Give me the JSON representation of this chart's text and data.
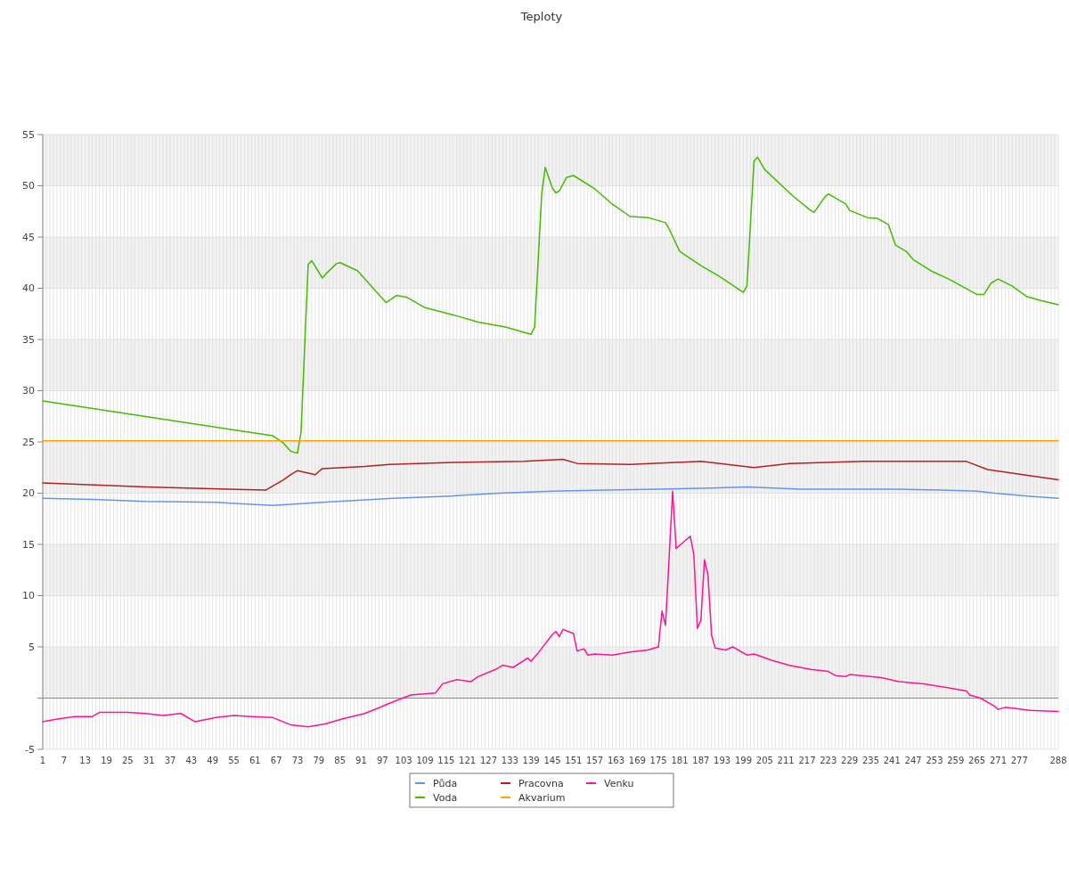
{
  "chart_data": {
    "type": "line",
    "title": "Teploty",
    "xlim": [
      1,
      288
    ],
    "xticks": [
      1,
      {
        "value": 2,
        "label": null
      },
      {
        "value": 3,
        "label": null
      },
      {
        "value": 4,
        "label": null
      },
      {
        "value": 5,
        "label": null
      },
      {
        "value": 6,
        "label": null
      },
      7,
      {
        "value": 8,
        "label": null
      },
      {
        "value": 9,
        "label": null
      },
      {
        "value": 10,
        "label": null
      },
      {
        "value": 11,
        "label": null
      },
      {
        "value": 12,
        "label": null
      },
      13,
      {
        "value": 14,
        "label": null
      },
      {
        "value": 15,
        "label": null
      },
      {
        "value": 16,
        "label": null
      },
      {
        "value": 17,
        "label": null
      },
      {
        "value": 18,
        "label": null
      },
      19,
      {
        "value": 20,
        "label": null
      },
      {
        "value": 21,
        "label": null
      },
      {
        "value": 22,
        "label": null
      },
      {
        "value": 23,
        "label": null
      },
      {
        "value": 24,
        "label": null
      },
      25,
      {
        "value": 26,
        "label": null
      },
      {
        "value": 27,
        "label": null
      },
      {
        "value": 28,
        "label": null
      },
      {
        "value": 29,
        "label": null
      },
      {
        "value": 30,
        "label": null
      },
      31,
      {
        "value": 32,
        "label": null
      },
      {
        "value": 33,
        "label": null
      },
      {
        "value": 34,
        "label": null
      },
      {
        "value": 35,
        "label": null
      },
      {
        "value": 36,
        "label": null
      },
      37,
      {
        "value": 38,
        "label": null
      },
      {
        "value": 39,
        "label": null
      },
      {
        "value": 40,
        "label": null
      },
      {
        "value": 41,
        "label": null
      },
      {
        "value": 42,
        "label": null
      },
      43,
      {
        "value": 44,
        "label": null
      },
      {
        "value": 45,
        "label": null
      },
      {
        "value": 46,
        "label": null
      },
      {
        "value": 47,
        "label": null
      },
      {
        "value": 48,
        "label": null
      },
      49,
      {
        "value": 50,
        "label": null
      },
      {
        "value": 51,
        "label": null
      },
      {
        "value": 52,
        "label": null
      },
      {
        "value": 53,
        "label": null
      },
      {
        "value": 54,
        "label": null
      },
      55,
      {
        "value": 56,
        "label": null
      },
      {
        "value": 57,
        "label": null
      },
      {
        "value": 58,
        "label": null
      },
      {
        "value": 59,
        "label": null
      },
      {
        "value": 60,
        "label": null
      },
      61,
      {
        "value": 62,
        "label": null
      },
      {
        "value": 63,
        "label": null
      },
      {
        "value": 64,
        "label": null
      },
      {
        "value": 65,
        "label": null
      },
      {
        "value": 66,
        "label": null
      },
      67,
      {
        "value": 68,
        "label": null
      },
      {
        "value": 69,
        "label": null
      },
      {
        "value": 70,
        "label": null
      },
      {
        "value": 71,
        "label": null
      },
      {
        "value": 72,
        "label": null
      },
      73,
      {
        "value": 74,
        "label": null
      },
      {
        "value": 75,
        "label": null
      },
      {
        "value": 76,
        "label": null
      },
      {
        "value": 77,
        "label": null
      },
      {
        "value": 78,
        "label": null
      },
      79,
      {
        "value": 80,
        "label": null
      },
      {
        "value": 81,
        "label": null
      },
      {
        "value": 82,
        "label": null
      },
      {
        "value": 83,
        "label": null
      },
      {
        "value": 84,
        "label": null
      },
      85,
      {
        "value": 86,
        "label": null
      },
      {
        "value": 87,
        "label": null
      },
      {
        "value": 88,
        "label": null
      },
      {
        "value": 89,
        "label": null
      },
      {
        "value": 90,
        "label": null
      },
      91,
      {
        "value": 92,
        "label": null
      },
      {
        "value": 93,
        "label": null
      },
      {
        "value": 94,
        "label": null
      },
      {
        "value": 95,
        "label": null
      },
      {
        "value": 96,
        "label": null
      },
      97,
      {
        "value": 98,
        "label": null
      },
      {
        "value": 99,
        "label": null
      },
      {
        "value": 100,
        "label": null
      },
      {
        "value": 101,
        "label": null
      },
      {
        "value": 102,
        "label": null
      },
      103,
      {
        "value": 104,
        "label": null
      },
      {
        "value": 105,
        "label": null
      },
      {
        "value": 106,
        "label": null
      },
      {
        "value": 107,
        "label": null
      },
      {
        "value": 108,
        "label": null
      },
      109,
      {
        "value": 110,
        "label": null
      },
      {
        "value": 111,
        "label": null
      },
      {
        "value": 112,
        "label": null
      },
      {
        "value": 113,
        "label": null
      },
      {
        "value": 114,
        "label": null
      },
      115,
      {
        "value": 116,
        "label": null
      },
      {
        "value": 117,
        "label": null
      },
      {
        "value": 118,
        "label": null
      },
      {
        "value": 119,
        "label": null
      },
      {
        "value": 120,
        "label": null
      },
      121,
      {
        "value": 122,
        "label": null
      },
      {
        "value": 123,
        "label": null
      },
      {
        "value": 124,
        "label": null
      },
      {
        "value": 125,
        "label": null
      },
      {
        "value": 126,
        "label": null
      },
      127,
      {
        "value": 128,
        "label": null
      },
      {
        "value": 129,
        "label": null
      },
      {
        "value": 130,
        "label": null
      },
      {
        "value": 131,
        "label": null
      },
      {
        "value": 132,
        "label": null
      },
      133,
      {
        "value": 134,
        "label": null
      },
      {
        "value": 135,
        "label": null
      },
      {
        "value": 136,
        "label": null
      },
      {
        "value": 137,
        "label": null
      },
      {
        "value": 138,
        "label": null
      },
      139,
      {
        "value": 140,
        "label": null
      },
      {
        "value": 141,
        "label": null
      },
      {
        "value": 142,
        "label": null
      },
      {
        "value": 143,
        "label": null
      },
      {
        "value": 144,
        "label": null
      },
      145,
      {
        "value": 146,
        "label": null
      },
      {
        "value": 147,
        "label": null
      },
      {
        "value": 148,
        "label": null
      },
      {
        "value": 149,
        "label": null
      },
      {
        "value": 150,
        "label": null
      },
      151,
      {
        "value": 152,
        "label": null
      },
      {
        "value": 153,
        "label": null
      },
      {
        "value": 154,
        "label": null
      },
      {
        "value": 155,
        "label": null
      },
      {
        "value": 156,
        "label": null
      },
      157,
      {
        "value": 158,
        "label": null
      },
      {
        "value": 159,
        "label": null
      },
      {
        "value": 160,
        "label": null
      },
      {
        "value": 161,
        "label": null
      },
      {
        "value": 162,
        "label": null
      },
      163,
      {
        "value": 164,
        "label": null
      },
      {
        "value": 165,
        "label": null
      },
      {
        "value": 166,
        "label": null
      },
      {
        "value": 167,
        "label": null
      },
      {
        "value": 168,
        "label": null
      },
      169,
      {
        "value": 170,
        "label": null
      },
      {
        "value": 171,
        "label": null
      },
      {
        "value": 172,
        "label": null
      },
      {
        "value": 173,
        "label": null
      },
      {
        "value": 174,
        "label": null
      },
      175,
      {
        "value": 176,
        "label": null
      },
      {
        "value": 177,
        "label": null
      },
      {
        "value": 178,
        "label": null
      },
      {
        "value": 179,
        "label": null
      },
      {
        "value": 180,
        "label": null
      },
      181,
      {
        "value": 182,
        "label": null
      },
      {
        "value": 183,
        "label": null
      },
      {
        "value": 184,
        "label": null
      },
      {
        "value": 185,
        "label": null
      },
      {
        "value": 186,
        "label": null
      },
      187,
      {
        "value": 188,
        "label": null
      },
      {
        "value": 189,
        "label": null
      },
      {
        "value": 190,
        "label": null
      },
      {
        "value": 191,
        "label": null
      },
      {
        "value": 192,
        "label": null
      },
      193,
      {
        "value": 194,
        "label": null
      },
      {
        "value": 195,
        "label": null
      },
      {
        "value": 196,
        "label": null
      },
      {
        "value": 197,
        "label": null
      },
      {
        "value": 198,
        "label": null
      },
      199,
      {
        "value": 200,
        "label": null
      },
      {
        "value": 201,
        "label": null
      },
      {
        "value": 202,
        "label": null
      },
      {
        "value": 203,
        "label": null
      },
      {
        "value": 204,
        "label": null
      },
      205,
      {
        "value": 206,
        "label": null
      },
      {
        "value": 207,
        "label": null
      },
      {
        "value": 208,
        "label": null
      },
      {
        "value": 209,
        "label": null
      },
      {
        "value": 210,
        "label": null
      },
      211,
      {
        "value": 212,
        "label": null
      },
      {
        "value": 213,
        "label": null
      },
      {
        "value": 214,
        "label": null
      },
      {
        "value": 215,
        "label": null
      },
      {
        "value": 216,
        "label": null
      },
      217,
      {
        "value": 218,
        "label": null
      },
      {
        "value": 219,
        "label": null
      },
      {
        "value": 220,
        "label": null
      },
      {
        "value": 221,
        "label": null
      },
      {
        "value": 222,
        "label": null
      },
      223,
      {
        "value": 224,
        "label": null
      },
      {
        "value": 225,
        "label": null
      },
      {
        "value": 226,
        "label": null
      },
      {
        "value": 227,
        "label": null
      },
      {
        "value": 228,
        "label": null
      },
      229,
      {
        "value": 230,
        "label": null
      },
      {
        "value": 231,
        "label": null
      },
      {
        "value": 232,
        "label": null
      },
      {
        "value": 233,
        "label": null
      },
      {
        "value": 234,
        "label": null
      },
      235,
      {
        "value": 236,
        "label": null
      },
      {
        "value": 237,
        "label": null
      },
      {
        "value": 238,
        "label": null
      },
      {
        "value": 239,
        "label": null
      },
      {
        "value": 240,
        "label": null
      },
      241,
      {
        "value": 242,
        "label": null
      },
      {
        "value": 243,
        "label": null
      },
      {
        "value": 244,
        "label": null
      },
      {
        "value": 245,
        "label": null
      },
      {
        "value": 246,
        "label": null
      },
      247,
      {
        "value": 248,
        "label": null
      },
      {
        "value": 249,
        "label": null
      },
      {
        "value": 250,
        "label": null
      },
      {
        "value": 251,
        "label": null
      },
      {
        "value": 252,
        "label": null
      },
      253,
      {
        "value": 254,
        "label": null
      },
      {
        "value": 255,
        "label": null
      },
      {
        "value": 256,
        "label": null
      },
      {
        "value": 257,
        "label": null
      },
      {
        "value": 258,
        "label": null
      },
      259,
      {
        "value": 260,
        "label": null
      },
      {
        "value": 261,
        "label": null
      },
      {
        "value": 262,
        "label": null
      },
      {
        "value": 263,
        "label": null
      },
      {
        "value": 264,
        "label": null
      },
      265,
      {
        "value": 266,
        "label": null
      },
      {
        "value": 267,
        "label": null
      },
      {
        "value": 268,
        "label": null
      },
      {
        "value": 269,
        "label": null
      },
      {
        "value": 270,
        "label": null
      },
      271,
      {
        "value": 272,
        "label": null
      },
      {
        "value": 273,
        "label": null
      },
      {
        "value": 274,
        "label": null
      },
      {
        "value": 275,
        "label": null
      },
      {
        "value": 276,
        "label": null
      },
      277,
      {
        "value": 278,
        "label": null
      },
      {
        "value": 279,
        "label": null
      },
      {
        "value": 280,
        "label": null
      },
      {
        "value": 281,
        "label": null
      },
      {
        "value": 282,
        "label": null
      },
      {
        "value": 283,
        "label": null
      },
      {
        "value": 284,
        "label": null
      },
      {
        "value": 285,
        "label": null
      },
      {
        "value": 286,
        "label": null
      },
      {
        "value": 287,
        "label": null
      },
      288
    ],
    "ylim": [
      -5,
      55
    ],
    "yticks": [
      -5,
      {
        "value": 0,
        "label": null
      },
      5,
      10,
      15,
      20,
      25,
      30,
      35,
      40,
      45,
      50,
      55
    ],
    "grid": true,
    "legend": "bottom",
    "series": [
      {
        "name": "Půda",
        "color": "#6495ed",
        "x": [
          1,
          15,
          30,
          50,
          66,
          80,
          90,
          100,
          115,
          130,
          145,
          160,
          175,
          190,
          200,
          215,
          240,
          255,
          265,
          270,
          280,
          288
        ],
        "values": [
          19.5,
          19.4,
          19.2,
          19.1,
          18.8,
          19.1,
          19.3,
          19.5,
          19.7,
          20.0,
          20.2,
          20.3,
          20.4,
          20.5,
          20.6,
          20.4,
          20.4,
          20.3,
          20.2,
          20.0,
          19.7,
          19.5
        ]
      },
      {
        "name": "Voda",
        "color": "#44bb00",
        "x": [
          1,
          66,
          69,
          71,
          73,
          74,
          76,
          77,
          80,
          81,
          84,
          85,
          90,
          98,
          101,
          104,
          109,
          117,
          124,
          132,
          139,
          140,
          142,
          143,
          145,
          146,
          147,
          149,
          151,
          157,
          162,
          167,
          172,
          177,
          178,
          181,
          187,
          192,
          199,
          200,
          202,
          203,
          205,
          213,
          218,
          219,
          222,
          223,
          228,
          229,
          234,
          237,
          240,
          242,
          245,
          247,
          252,
          257,
          265,
          267,
          269,
          271,
          275,
          279,
          283,
          288
        ],
        "values": [
          29.0,
          25.6,
          24.9,
          24.1,
          23.9,
          26.0,
          42.3,
          42.7,
          41.0,
          41.4,
          42.4,
          42.5,
          41.7,
          38.6,
          39.3,
          39.1,
          38.1,
          37.4,
          36.7,
          36.2,
          35.5,
          36.2,
          49.2,
          51.8,
          49.8,
          49.3,
          49.5,
          50.8,
          51.0,
          49.7,
          48.2,
          47.0,
          46.9,
          46.4,
          45.8,
          43.6,
          42.2,
          41.2,
          39.6,
          40.2,
          52.4,
          52.8,
          51.6,
          49.0,
          47.6,
          47.4,
          48.9,
          49.2,
          48.2,
          47.6,
          46.9,
          46.8,
          46.2,
          44.2,
          43.6,
          42.8,
          41.7,
          40.9,
          39.4,
          39.4,
          40.5,
          40.9,
          40.2,
          39.2,
          38.8,
          38.4
        ]
      },
      {
        "name": "Pracovna",
        "color": "#b22222",
        "x": [
          1,
          30,
          64,
          69,
          71,
          73,
          78,
          80,
          92,
          99,
          117,
          137,
          148,
          152,
          167,
          187,
          202,
          212,
          233,
          262,
          268,
          288
        ],
        "values": [
          21.0,
          20.6,
          20.3,
          21.3,
          21.8,
          22.2,
          21.8,
          22.4,
          22.6,
          22.8,
          23.0,
          23.1,
          23.3,
          22.9,
          22.8,
          23.1,
          22.5,
          22.9,
          23.1,
          23.1,
          22.3,
          21.3
        ]
      },
      {
        "name": "Akvarium",
        "color": "#ffa500",
        "x": [
          1,
          288
        ],
        "values": [
          25.1,
          25.1
        ]
      },
      {
        "name": "Venku",
        "color": "#ff1493",
        "x": [
          1,
          4,
          6,
          10,
          15,
          17,
          25,
          30,
          35,
          40,
          44,
          50,
          55,
          60,
          66,
          71,
          76,
          81,
          86,
          92,
          97,
          99,
          105,
          112,
          114,
          118,
          122,
          124,
          129,
          131,
          134,
          138,
          139,
          141,
          145,
          146,
          147,
          148,
          151,
          152,
          154,
          155,
          157,
          162,
          167,
          172,
          175,
          176,
          177,
          179,
          180,
          182,
          184,
          185,
          186,
          187,
          188,
          189,
          190,
          191,
          194,
          196,
          200,
          202,
          207,
          212,
          218,
          223,
          225,
          228,
          229,
          238,
          243,
          250,
          257,
          262,
          263,
          266,
          270,
          271,
          273,
          280,
          288
        ],
        "values": [
          -2.3,
          -2.1,
          -2.0,
          -1.8,
          -1.8,
          -1.4,
          -1.4,
          -1.5,
          -1.7,
          -1.5,
          -2.3,
          -1.9,
          -1.7,
          -1.8,
          -1.9,
          -2.6,
          -2.8,
          -2.5,
          -2.0,
          -1.5,
          -0.8,
          -0.5,
          0.3,
          0.5,
          1.4,
          1.8,
          1.6,
          2.1,
          2.8,
          3.2,
          3.0,
          3.9,
          3.6,
          4.4,
          6.2,
          6.5,
          6.0,
          6.7,
          6.3,
          4.6,
          4.8,
          4.2,
          4.3,
          4.2,
          4.5,
          4.7,
          5.0,
          8.5,
          7.1,
          20.2,
          14.6,
          15.2,
          15.8,
          14.0,
          6.8,
          7.6,
          13.5,
          12.0,
          6.2,
          4.9,
          4.7,
          5.0,
          4.2,
          4.3,
          3.7,
          3.2,
          2.8,
          2.6,
          2.2,
          2.1,
          2.3,
          2.0,
          1.6,
          1.4,
          1.0,
          0.7,
          0.3,
          0.0,
          -0.8,
          -1.1,
          -0.9,
          -1.2,
          -1.3
        ]
      }
    ]
  }
}
